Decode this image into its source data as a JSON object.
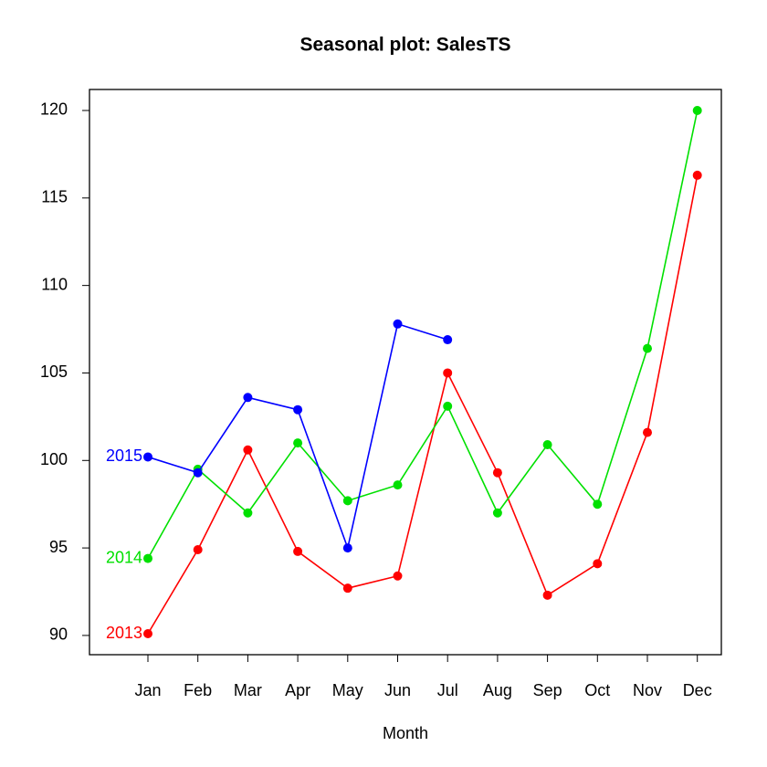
{
  "chart_data": {
    "type": "line",
    "title": "Seasonal plot: SalesTS",
    "x_label": "Month",
    "categories": [
      "Jan",
      "Feb",
      "Mar",
      "Apr",
      "May",
      "Jun",
      "Jul",
      "Aug",
      "Sep",
      "Oct",
      "Nov",
      "Dec"
    ],
    "series": [
      {
        "name": "2013",
        "color": "#ff0000",
        "values": [
          90.1,
          94.9,
          100.6,
          94.8,
          92.7,
          93.4,
          105.0,
          99.3,
          92.3,
          94.1,
          101.6,
          116.3
        ]
      },
      {
        "name": "2014",
        "color": "#00e000",
        "values": [
          94.4,
          99.5,
          97.0,
          101.0,
          97.7,
          98.6,
          103.1,
          97.0,
          100.9,
          97.5,
          106.4,
          120.0
        ]
      },
      {
        "name": "2015",
        "color": "#0000ff",
        "values": [
          100.2,
          99.3,
          103.6,
          102.9,
          95.0,
          107.8,
          106.9,
          null,
          null,
          null,
          null,
          null
        ]
      }
    ],
    "ylim": [
      88.9,
      121.2
    ],
    "yticks": [
      90,
      95,
      100,
      105,
      110,
      115,
      120
    ]
  }
}
